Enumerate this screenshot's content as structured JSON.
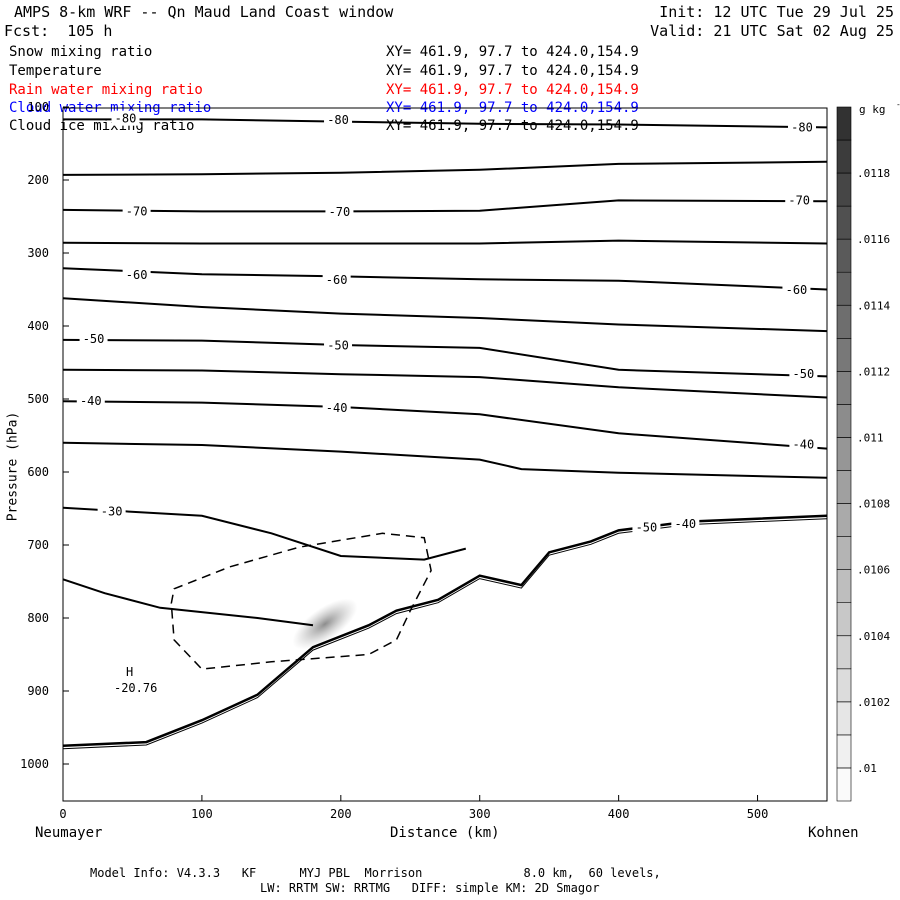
{
  "header": {
    "title": "AMPS 8-km WRF -- Qn Maud Land Coast window",
    "init": "Init: 12 UTC Tue 29 Jul 25",
    "fcst": "Fcst:  105 h",
    "valid": "Valid: 21 UTC Sat 02 Aug 25"
  },
  "fields": [
    {
      "label": "Snow mixing ratio",
      "xy": "XY= 461.9, 97.7 to 424.0,154.9",
      "color": "#000000"
    },
    {
      "label": "Temperature",
      "xy": "XY= 461.9, 97.7 to 424.0,154.9",
      "color": "#000000"
    },
    {
      "label": "Rain water mixing ratio",
      "xy": "XY= 461.9, 97.7 to 424.0,154.9",
      "color": "#ff0000"
    },
    {
      "label": "Cloud water mixing ratio",
      "xy": "XY= 461.9, 97.7 to 424.0,154.9",
      "color": "#0000ff"
    },
    {
      "label": "Cloud ice mixing ratio",
      "xy": "XY= 461.9, 97.7 to 424.0,154.9",
      "color": "#000000"
    }
  ],
  "footer": {
    "line1": "Model Info: V4.3.3   KF      MYJ PBL  Morrison              8.0 km,  60 levels,",
    "line2": "LW: RRTM SW: RRTMG   DIFF: simple KM: 2D Smagor"
  },
  "chart_data": {
    "type": "line",
    "title": "",
    "xlabel": "Distance (km)",
    "ylabel": "Pressure (hPa)",
    "xlim": [
      0,
      550
    ],
    "ylim": [
      100,
      1050
    ],
    "x_ticks": [
      0,
      100,
      200,
      300,
      400,
      500
    ],
    "y_ticks": [
      100,
      200,
      300,
      400,
      500,
      600,
      700,
      800,
      900,
      1000
    ],
    "x_start_label": "Neumayer",
    "x_end_label": "Kohnen",
    "colorbar": {
      "unit": "g kg",
      "unit_exp": "-1",
      "tick_labels": [
        ".01",
        ".0102",
        ".0104",
        ".0106",
        ".0108",
        ".011",
        ".0112",
        ".0114",
        ".0116",
        ".0118"
      ]
    },
    "extremum": {
      "symbol": "H",
      "value": "-20.76",
      "x": 48,
      "p": 885
    },
    "temperature_contours": [
      {
        "name": "-80",
        "points": [
          [
            0,
            117
          ],
          [
            100,
            117
          ],
          [
            200,
            120
          ],
          [
            300,
            123
          ],
          [
            400,
            124
          ],
          [
            550,
            128
          ]
        ]
      },
      {
        "name": "-75",
        "points": [
          [
            0,
            193
          ],
          [
            100,
            192
          ],
          [
            200,
            190
          ],
          [
            300,
            186
          ],
          [
            400,
            178
          ],
          [
            550,
            175
          ]
        ]
      },
      {
        "name": "-70",
        "points": [
          [
            0,
            241
          ],
          [
            100,
            243
          ],
          [
            200,
            243
          ],
          [
            300,
            242
          ],
          [
            400,
            228
          ],
          [
            550,
            229
          ]
        ]
      },
      {
        "name": "-65",
        "points": [
          [
            0,
            286
          ],
          [
            100,
            287
          ],
          [
            200,
            287
          ],
          [
            300,
            287
          ],
          [
            400,
            283
          ],
          [
            550,
            287
          ]
        ]
      },
      {
        "name": "-60",
        "points": [
          [
            0,
            321
          ],
          [
            100,
            329
          ],
          [
            200,
            332
          ],
          [
            300,
            336
          ],
          [
            400,
            338
          ],
          [
            550,
            350
          ]
        ]
      },
      {
        "name": "-55",
        "points": [
          [
            0,
            362
          ],
          [
            100,
            374
          ],
          [
            200,
            383
          ],
          [
            300,
            389
          ],
          [
            400,
            398
          ],
          [
            550,
            407
          ]
        ]
      },
      {
        "name": "-50",
        "points": [
          [
            0,
            419
          ],
          [
            100,
            420
          ],
          [
            200,
            426
          ],
          [
            300,
            430
          ],
          [
            400,
            460
          ],
          [
            550,
            469
          ]
        ]
      },
      {
        "name": "-45",
        "points": [
          [
            0,
            460
          ],
          [
            100,
            461
          ],
          [
            200,
            466
          ],
          [
            300,
            470
          ],
          [
            400,
            484
          ],
          [
            550,
            498
          ]
        ]
      },
      {
        "name": "-40",
        "points": [
          [
            0,
            503
          ],
          [
            100,
            505
          ],
          [
            200,
            511
          ],
          [
            300,
            521
          ],
          [
            400,
            547
          ],
          [
            550,
            568
          ]
        ]
      },
      {
        "name": "-35",
        "points": [
          [
            0,
            560
          ],
          [
            100,
            563
          ],
          [
            200,
            572
          ],
          [
            300,
            583
          ],
          [
            330,
            596
          ],
          [
            400,
            601
          ],
          [
            550,
            608
          ]
        ]
      },
      {
        "name": "-30",
        "points": [
          [
            0,
            649
          ],
          [
            100,
            660
          ],
          [
            150,
            684
          ],
          [
            200,
            715
          ],
          [
            260,
            720
          ],
          [
            290,
            705
          ]
        ]
      },
      {
        "name": "-25",
        "points": [
          [
            0,
            747
          ],
          [
            30,
            766
          ],
          [
            70,
            786
          ],
          [
            140,
            800
          ],
          [
            180,
            810
          ]
        ]
      }
    ],
    "cloud_ice_contour": {
      "name": "dashed",
      "points": [
        [
          80,
          760
        ],
        [
          120,
          730
        ],
        [
          170,
          703
        ],
        [
          230,
          684
        ],
        [
          260,
          690
        ],
        [
          265,
          735
        ],
        [
          250,
          790
        ],
        [
          240,
          830
        ],
        [
          220,
          850
        ],
        [
          150,
          860
        ],
        [
          100,
          870
        ],
        [
          80,
          830
        ],
        [
          78,
          780
        ]
      ]
    },
    "terrain_surface": {
      "name": "surface",
      "points": [
        [
          0,
          975
        ],
        [
          60,
          970
        ],
        [
          100,
          940
        ],
        [
          140,
          905
        ],
        [
          180,
          840
        ],
        [
          220,
          810
        ],
        [
          240,
          790
        ],
        [
          270,
          775
        ],
        [
          300,
          742
        ],
        [
          330,
          755
        ],
        [
          350,
          710
        ],
        [
          380,
          695
        ],
        [
          400,
          680
        ],
        [
          450,
          668
        ],
        [
          550,
          660
        ]
      ]
    },
    "annotations": [
      {
        "text": "-80",
        "x": 45,
        "p": 116
      },
      {
        "text": "-80",
        "x": 198,
        "p": 118
      },
      {
        "text": "-80",
        "x": 532,
        "p": 128
      },
      {
        "text": "-70",
        "x": 53,
        "p": 243
      },
      {
        "text": "-70",
        "x": 199,
        "p": 244
      },
      {
        "text": "-70",
        "x": 530,
        "p": 228
      },
      {
        "text": "-60",
        "x": 53,
        "p": 330
      },
      {
        "text": "-60",
        "x": 197,
        "p": 337
      },
      {
        "text": "-60",
        "x": 528,
        "p": 351
      },
      {
        "text": "-50",
        "x": 22,
        "p": 418
      },
      {
        "text": "-50",
        "x": 198,
        "p": 427
      },
      {
        "text": "-50",
        "x": 533,
        "p": 466
      },
      {
        "text": "-40",
        "x": 20,
        "p": 503
      },
      {
        "text": "-40",
        "x": 197,
        "p": 512
      },
      {
        "text": "-40",
        "x": 533,
        "p": 562
      },
      {
        "text": "-30",
        "x": 35,
        "p": 654
      },
      {
        "text": "-50",
        "x": 420,
        "p": 676
      },
      {
        "text": "-40",
        "x": 448,
        "p": 671
      }
    ]
  }
}
